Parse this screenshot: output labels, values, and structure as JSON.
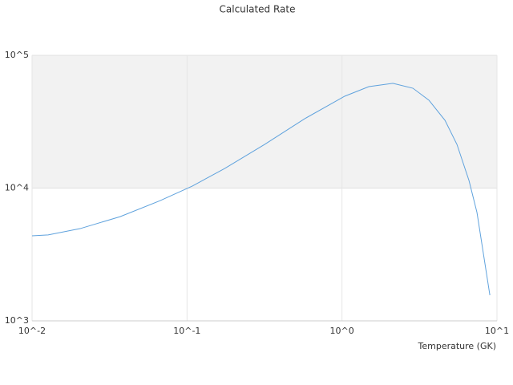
{
  "chart_data": {
    "type": "line",
    "title": "Calculated Rate",
    "x_label": "Temperature (GK)",
    "x": [
      0.01,
      0.0127,
      0.0204,
      0.037,
      0.0672,
      0.108,
      0.175,
      0.316,
      0.574,
      1.04,
      1.49,
      2.13,
      2.87,
      3.64,
      4.62,
      5.52,
      6.6,
      7.43,
      9.0
    ],
    "series": [
      {
        "name": "Calculated Rate",
        "color": "#5fa2dd",
        "values": [
          4370,
          4440,
          4950,
          6090,
          8050,
          10350,
          14060,
          21300,
          33300,
          49200,
          58100,
          61500,
          56500,
          45900,
          32400,
          21300,
          11400,
          6550,
          1560
        ]
      }
    ],
    "xlim": [
      0.01,
      10
    ],
    "ylim": [
      1000,
      100000
    ],
    "xticks": [
      {
        "value": 0.01,
        "label": "10^-2"
      },
      {
        "value": 0.1,
        "label": "10^-1"
      },
      {
        "value": 1,
        "label": "10^0"
      },
      {
        "value": 10,
        "label": "10^1"
      }
    ],
    "yticks": [
      {
        "value": 1000,
        "label": "10^3"
      },
      {
        "value": 10000,
        "label": "10^4"
      },
      {
        "value": 100000,
        "label": "10^5"
      }
    ],
    "xscale": "log",
    "yscale": "log",
    "alternate_bands": true,
    "band_color": "#f2f2f2"
  }
}
